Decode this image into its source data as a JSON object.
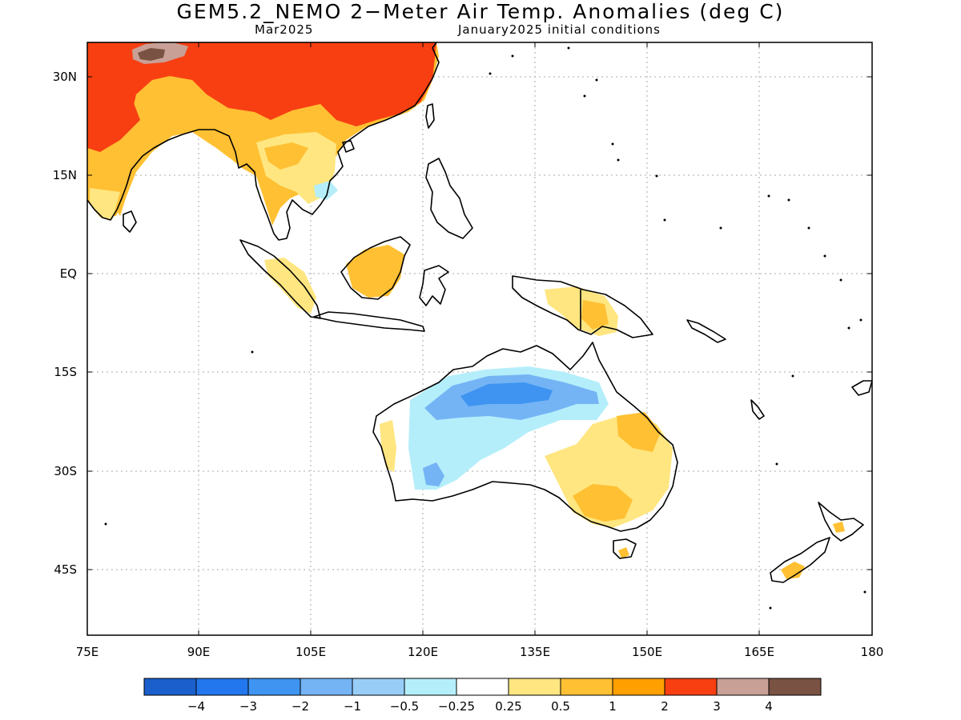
{
  "title": "GEM5.2_NEMO 2−Meter Air Temp. Anomalies (deg C)",
  "subtitle_left": "Mar2025",
  "subtitle_right": "January2025 initial conditions",
  "lon_labels": [
    "75E",
    "90E",
    "105E",
    "120E",
    "135E",
    "150E",
    "165E",
    "180"
  ],
  "lat_labels": [
    "30N",
    "15N",
    "EQ",
    "15S",
    "30S",
    "45S"
  ],
  "colorbar": {
    "colors": [
      "#1a5fcc",
      "#2277ee",
      "#3e94f0",
      "#74b4f5",
      "#98cdf8",
      "#b4eefa",
      "#ffffff",
      "#ffe680",
      "#ffc033",
      "#ffa000",
      "#f73f12",
      "#c8a096",
      "#7a5244"
    ],
    "labels": [
      "−4",
      "−3",
      "−2",
      "−1",
      "−0.5",
      "−0.25",
      "0.25",
      "0.5",
      "1",
      "2",
      "3",
      "4"
    ]
  }
}
